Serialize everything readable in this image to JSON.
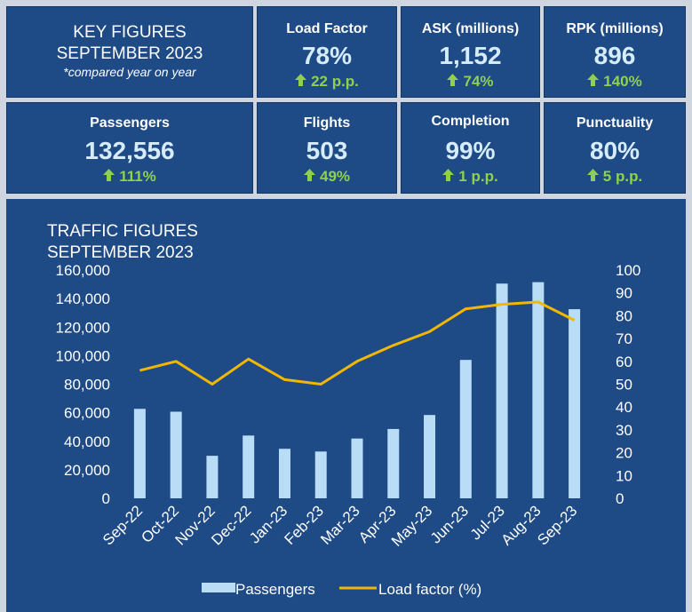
{
  "colors": {
    "card_bg": "#1e4a86",
    "value": "#d6ecfb",
    "up": "#8fd14f",
    "bar": "#b9dcf7",
    "line": "#f2b705"
  },
  "key_figures": {
    "title_line1": "KEY FIGURES",
    "title_line2": "SEPTEMBER 2023",
    "note": "*compared year on year"
  },
  "metrics": [
    {
      "label": "Load Factor",
      "value": "78%",
      "change": "22 p.p.",
      "icon": "arrow-up-icon"
    },
    {
      "label": "ASK (millions)",
      "value": "1,152",
      "change": "74%",
      "icon": "arrow-up-icon"
    },
    {
      "label": "RPK (millions)",
      "value": "896",
      "change": "140%",
      "icon": "arrow-up-icon"
    },
    {
      "label": "Passengers",
      "value": "132,556",
      "change": "111%",
      "icon": "arrow-up-icon"
    },
    {
      "label": "Flights",
      "value": "503",
      "change": "49%",
      "icon": "arrow-up-icon"
    },
    {
      "label": "Completion",
      "value": "99%",
      "change": "1 p.p.",
      "icon": "arrow-up-icon"
    },
    {
      "label": "Punctuality",
      "value": "80%",
      "change": "5 p.p.",
      "icon": "arrow-up-icon"
    }
  ],
  "chart_data": {
    "type": "bar",
    "title_line1": "TRAFFIC FIGURES",
    "title_line2": "SEPTEMBER 2023",
    "categories": [
      "Sep-22",
      "Oct-22",
      "Nov-22",
      "Dec-22",
      "Jan-23",
      "Feb-23",
      "Mar-23",
      "Apr-23",
      "May-23",
      "Jun-23",
      "Jul-23",
      "Aug-23",
      "Sep-23"
    ],
    "series": [
      {
        "name": "Passengers",
        "type": "bar",
        "axis": "left",
        "values": [
          62700,
          60700,
          29800,
          44000,
          34700,
          32800,
          41900,
          48600,
          58400,
          97000,
          150500,
          151500,
          132556
        ]
      },
      {
        "name": "Load factor (%)",
        "type": "line",
        "axis": "right",
        "values": [
          56,
          60,
          50,
          61,
          52,
          50,
          60,
          67,
          73,
          83,
          85,
          86,
          78
        ]
      }
    ],
    "y_left": {
      "min": 0,
      "max": 160000,
      "ticks": [
        "0",
        "20,000",
        "40,000",
        "60,000",
        "80,000",
        "100,000",
        "120,000",
        "140,000",
        "160,000"
      ]
    },
    "y_right": {
      "min": 0,
      "max": 100,
      "ticks": [
        "0",
        "10",
        "20",
        "30",
        "40",
        "50",
        "60",
        "70",
        "80",
        "90",
        "100"
      ]
    },
    "grid": false,
    "legend_position": "bottom"
  }
}
